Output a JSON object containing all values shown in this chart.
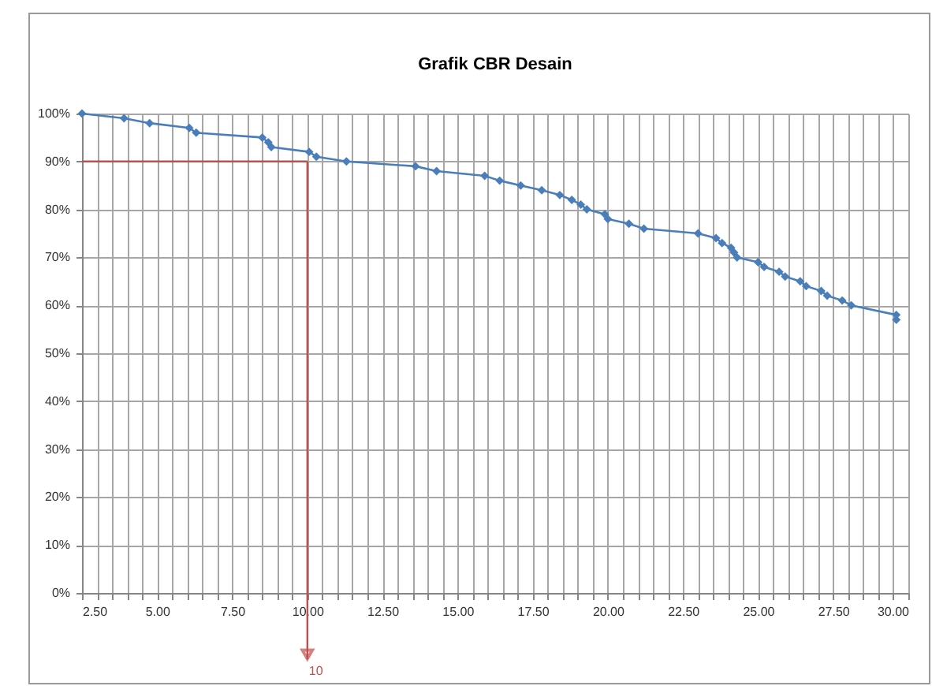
{
  "chart_data": {
    "type": "line",
    "title": "Grafik CBR Desain",
    "marker": "diamond",
    "grid": true,
    "x": [
      2.5,
      3.9,
      4.75,
      6.07,
      6.3,
      8.5,
      8.7,
      8.8,
      10.06,
      10.3,
      11.3,
      13.6,
      14.3,
      15.9,
      16.4,
      17.1,
      17.8,
      18.4,
      18.8,
      19.1,
      19.3,
      19.9,
      20.0,
      20.7,
      21.2,
      23.0,
      23.6,
      23.8,
      24.1,
      24.2,
      24.3,
      25.0,
      25.2,
      25.7,
      25.9,
      26.4,
      26.6,
      27.1,
      27.3,
      27.8,
      28.1,
      29.6,
      29.6
    ],
    "series": [
      {
        "color": "#4a7ebb",
        "values": [
          100,
          99,
          98,
          97,
          96,
          95,
          94,
          93,
          92,
          91,
          90,
          89,
          88,
          87,
          86,
          85,
          84,
          83,
          82,
          81,
          80,
          79,
          78,
          77,
          76,
          75,
          74,
          73,
          72,
          71,
          70,
          69,
          68,
          67,
          66,
          65,
          64,
          63,
          62,
          61,
          60,
          58,
          57
        ]
      }
    ],
    "xlim": [
      2.5,
      30
    ],
    "xticks": [
      {
        "value": 2.5,
        "label": "2.50"
      },
      {
        "value": 3,
        "label": null
      },
      {
        "value": 3.5,
        "label": null
      },
      {
        "value": 4,
        "label": null
      },
      {
        "value": 4.5,
        "label": null
      },
      {
        "value": 5,
        "label": "5.00"
      },
      {
        "value": 5.5,
        "label": null
      },
      {
        "value": 6,
        "label": null
      },
      {
        "value": 6.5,
        "label": null
      },
      {
        "value": 7,
        "label": null
      },
      {
        "value": 7.5,
        "label": "7.50"
      },
      {
        "value": 8,
        "label": null
      },
      {
        "value": 8.5,
        "label": null
      },
      {
        "value": 9,
        "label": null
      },
      {
        "value": 9.5,
        "label": null
      },
      {
        "value": 10,
        "label": "10.00"
      },
      {
        "value": 10.5,
        "label": null
      },
      {
        "value": 11,
        "label": null
      },
      {
        "value": 11.5,
        "label": null
      },
      {
        "value": 12,
        "label": null
      },
      {
        "value": 12.5,
        "label": "12.50"
      },
      {
        "value": 13,
        "label": null
      },
      {
        "value": 13.5,
        "label": null
      },
      {
        "value": 14,
        "label": null
      },
      {
        "value": 14.5,
        "label": null
      },
      {
        "value": 15,
        "label": "15.00"
      },
      {
        "value": 15.5,
        "label": null
      },
      {
        "value": 16,
        "label": null
      },
      {
        "value": 16.5,
        "label": null
      },
      {
        "value": 17,
        "label": null
      },
      {
        "value": 17.5,
        "label": "17.50"
      },
      {
        "value": 18,
        "label": null
      },
      {
        "value": 18.5,
        "label": null
      },
      {
        "value": 19,
        "label": null
      },
      {
        "value": 19.5,
        "label": null
      },
      {
        "value": 20,
        "label": "20.00"
      },
      {
        "value": 20.5,
        "label": null
      },
      {
        "value": 21,
        "label": null
      },
      {
        "value": 21.5,
        "label": null
      },
      {
        "value": 22,
        "label": null
      },
      {
        "value": 22.5,
        "label": "22.50"
      },
      {
        "value": 23,
        "label": null
      },
      {
        "value": 23.5,
        "label": null
      },
      {
        "value": 24,
        "label": null
      },
      {
        "value": 24.5,
        "label": null
      },
      {
        "value": 25,
        "label": "25.00"
      },
      {
        "value": 25.5,
        "label": null
      },
      {
        "value": 26,
        "label": null
      },
      {
        "value": 26.5,
        "label": null
      },
      {
        "value": 27,
        "label": null
      },
      {
        "value": 27.5,
        "label": "27.50"
      },
      {
        "value": 28,
        "label": null
      },
      {
        "value": 28.5,
        "label": null
      },
      {
        "value": 29,
        "label": null
      },
      {
        "value": 29.5,
        "label": null
      },
      {
        "value": 30,
        "label": "30.00"
      }
    ],
    "ylim": [
      0,
      100
    ],
    "yticks": [
      {
        "value": 0,
        "label": "0%"
      },
      {
        "value": 10,
        "label": "10%"
      },
      {
        "value": 20,
        "label": "20%"
      },
      {
        "value": 30,
        "label": "30%"
      },
      {
        "value": 40,
        "label": "40%"
      },
      {
        "value": 50,
        "label": "50%"
      },
      {
        "value": 60,
        "label": "60%"
      },
      {
        "value": 70,
        "label": "70%"
      },
      {
        "value": 80,
        "label": "80%"
      },
      {
        "value": 90,
        "label": "90%"
      },
      {
        "value": 100,
        "label": "100%"
      }
    ],
    "ref_lines": [
      {
        "axis": "y",
        "value": 90,
        "label": null,
        "color": "#c0504d"
      },
      {
        "axis": "x",
        "value": 10,
        "label": "10",
        "color": "#c0504d"
      }
    ]
  }
}
